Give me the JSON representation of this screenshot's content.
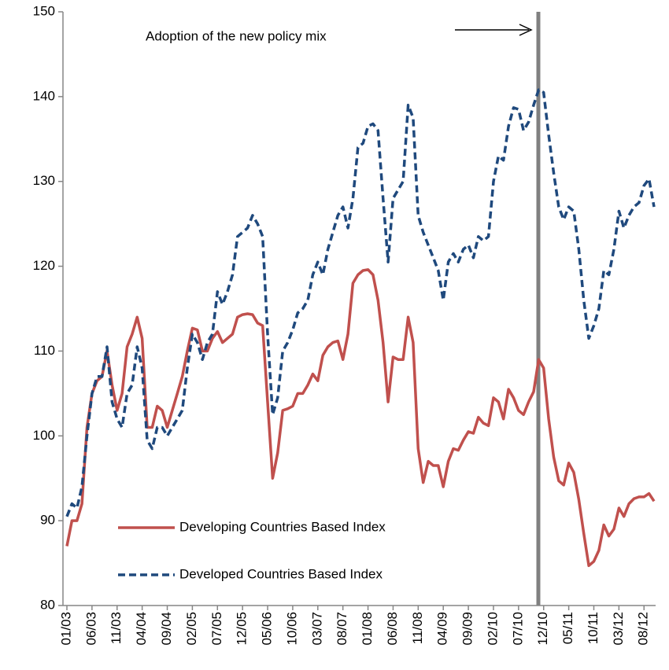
{
  "chart_data": {
    "type": "line",
    "annotation": "Adoption of the new policy mix",
    "categories": [
      "01/03",
      null,
      null,
      null,
      null,
      "06/03",
      null,
      null,
      null,
      null,
      "11/03",
      null,
      null,
      null,
      null,
      "04/04",
      null,
      null,
      null,
      null,
      "09/04",
      null,
      null,
      null,
      null,
      "02/05",
      null,
      null,
      null,
      null,
      "07/05",
      null,
      null,
      null,
      null,
      "12/05",
      null,
      null,
      null,
      null,
      "05/06",
      null,
      null,
      null,
      null,
      "10/06",
      null,
      null,
      null,
      null,
      "03/07",
      null,
      null,
      null,
      null,
      "08/07",
      null,
      null,
      null,
      null,
      "01/08",
      null,
      null,
      null,
      null,
      "06/08",
      null,
      null,
      null,
      null,
      "11/08",
      null,
      null,
      null,
      null,
      "04/09",
      null,
      null,
      null,
      null,
      "09/09",
      null,
      null,
      null,
      null,
      "02/10",
      null,
      null,
      null,
      null,
      "07/10",
      null,
      null,
      null,
      null,
      "12/10",
      null,
      null,
      null,
      null,
      "05/11",
      null,
      null,
      null,
      null,
      "10/11",
      null,
      null,
      null,
      null,
      "03/12",
      null,
      null,
      null,
      null,
      "08/12",
      null,
      null
    ],
    "series": [
      {
        "name": "Developing Countries Based Index",
        "color": "#c0504d",
        "dash": false,
        "values": [
          87,
          90,
          90,
          92,
          101,
          105,
          106.5,
          107,
          110,
          106,
          103,
          105,
          110.5,
          112,
          114,
          111.5,
          101,
          101,
          103.5,
          103,
          101,
          103,
          105,
          107,
          110,
          112.7,
          112.5,
          110,
          110,
          111.5,
          112.3,
          111,
          111.5,
          112,
          114,
          114.3,
          114.4,
          114.3,
          113.3,
          113,
          104,
          95,
          98,
          103,
          103.2,
          103.5,
          105,
          105,
          106,
          107.3,
          106.5,
          109.5,
          110.5,
          111,
          111.2,
          109,
          112,
          118,
          119,
          119.5,
          119.6,
          119,
          116,
          111,
          104,
          109.3,
          109,
          109,
          114,
          111,
          98.5,
          94.5,
          97,
          96.5,
          96.5,
          94,
          97,
          98.5,
          98.3,
          99.5,
          100.5,
          100.3,
          102.2,
          101.5,
          101.2,
          104.5,
          104,
          102,
          105.5,
          104.5,
          103,
          102.5,
          104,
          105.2,
          109,
          108,
          102,
          97.5,
          94.7,
          94.2,
          96.8,
          95.7,
          92.5,
          88.5,
          84.7,
          85.2,
          86.5,
          89.5,
          88.2,
          89,
          91.5,
          90.5,
          92,
          92.6,
          92.8,
          92.8,
          93.2,
          92.3
        ]
      },
      {
        "name": "Developed Countries Based Index",
        "color": "#1f497d",
        "dash": true,
        "values": [
          90.5,
          92,
          91.5,
          94,
          100,
          105,
          107,
          107,
          110.5,
          104,
          102,
          101,
          105,
          106,
          110.5,
          108,
          99.5,
          98.5,
          101,
          101,
          100,
          101,
          102,
          103,
          108,
          112,
          111,
          109,
          111,
          112,
          117,
          115.5,
          117,
          119,
          123.5,
          124,
          124.5,
          126,
          125,
          123.5,
          112,
          102.5,
          104.5,
          110,
          111,
          112.5,
          114.5,
          115,
          116,
          119,
          120.5,
          119,
          122,
          124,
          126,
          127,
          124.5,
          128,
          134,
          134.5,
          136.5,
          136.8,
          136,
          128,
          120.5,
          128,
          129,
          130,
          139,
          137.5,
          126,
          124,
          122.5,
          121,
          119.5,
          116,
          120.5,
          121.5,
          120.5,
          122,
          122.5,
          121,
          123.5,
          123,
          123.5,
          130,
          133,
          132.5,
          136.5,
          138.7,
          138.5,
          136,
          137,
          139,
          140.8,
          140.5,
          135.5,
          131,
          127,
          125.5,
          127,
          126.5,
          122,
          116,
          111.5,
          113,
          115,
          119.5,
          119,
          122,
          126.5,
          124.5,
          126,
          127,
          127.5,
          129.5,
          130.3,
          127
        ]
      }
    ],
    "ylim": [
      80,
      150
    ],
    "yticks": [
      80,
      90,
      100,
      110,
      120,
      130,
      140,
      150
    ],
    "grid": false
  }
}
